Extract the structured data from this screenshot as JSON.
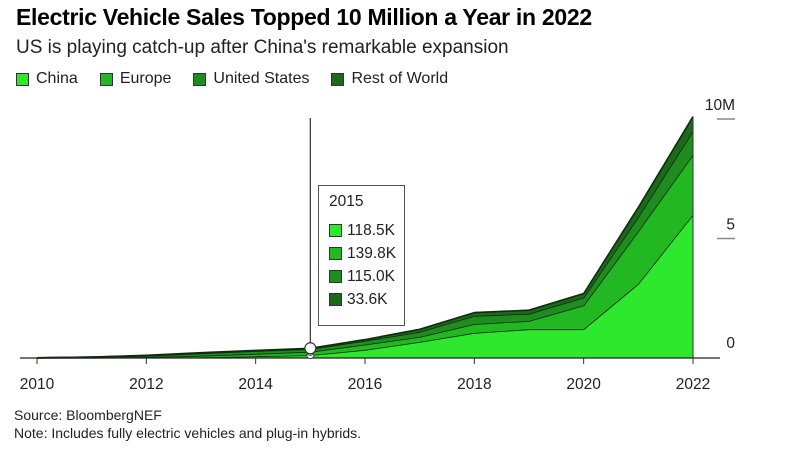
{
  "chart_data": {
    "type": "area",
    "stacked": true,
    "title": "Electric Vehicle Sales Topped 10 Million a Year in 2022",
    "subtitle": "US is playing catch-up after China's remarkable expansion",
    "xlabel": "",
    "ylabel": "",
    "x": [
      2010,
      2011,
      2012,
      2013,
      2014,
      2015,
      2016,
      2017,
      2018,
      2019,
      2020,
      2021,
      2022
    ],
    "x_ticks": [
      "2010",
      "2012",
      "2014",
      "2016",
      "2018",
      "2020",
      "2022"
    ],
    "x_tick_values": [
      2010,
      2012,
      2014,
      2016,
      2018,
      2020,
      2022
    ],
    "y_ticks": [
      "0",
      "5",
      "10M"
    ],
    "y_tick_values": [
      0,
      5,
      10
    ],
    "ylim": [
      0,
      10
    ],
    "xlim": [
      2010,
      2022
    ],
    "units": "million vehicles",
    "grid": false,
    "legend_position": "top-left",
    "series": [
      {
        "name": "China",
        "color": "#2ee82e",
        "values": [
          0.005,
          0.008,
          0.012,
          0.02,
          0.07,
          0.1185,
          0.34,
          0.67,
          1.05,
          1.2,
          1.2,
          3.1,
          6.0
        ]
      },
      {
        "name": "Europe",
        "color": "#22b822",
        "values": [
          0.003,
          0.01,
          0.03,
          0.07,
          0.1,
          0.1398,
          0.22,
          0.21,
          0.37,
          0.35,
          1.0,
          2.2,
          2.5
        ]
      },
      {
        "name": "United States",
        "color": "#1e8c1e",
        "values": [
          0.001,
          0.018,
          0.05,
          0.1,
          0.12,
          0.115,
          0.16,
          0.21,
          0.34,
          0.3,
          0.33,
          0.6,
          1.0
        ]
      },
      {
        "name": "Rest of World",
        "color": "#1b6a1b",
        "values": [
          0.001,
          0.006,
          0.02,
          0.03,
          0.03,
          0.0336,
          0.05,
          0.11,
          0.14,
          0.15,
          0.17,
          0.4,
          0.6
        ]
      }
    ],
    "hover": {
      "year": "2015",
      "x": 2015,
      "values": [
        "118.5K",
        "139.8K",
        "115.0K",
        "33.6K"
      ]
    }
  },
  "footer": {
    "source": "Source: BloombergNEF",
    "note": "Note: Includes fully electric vehicles and plug-in hybrids."
  }
}
